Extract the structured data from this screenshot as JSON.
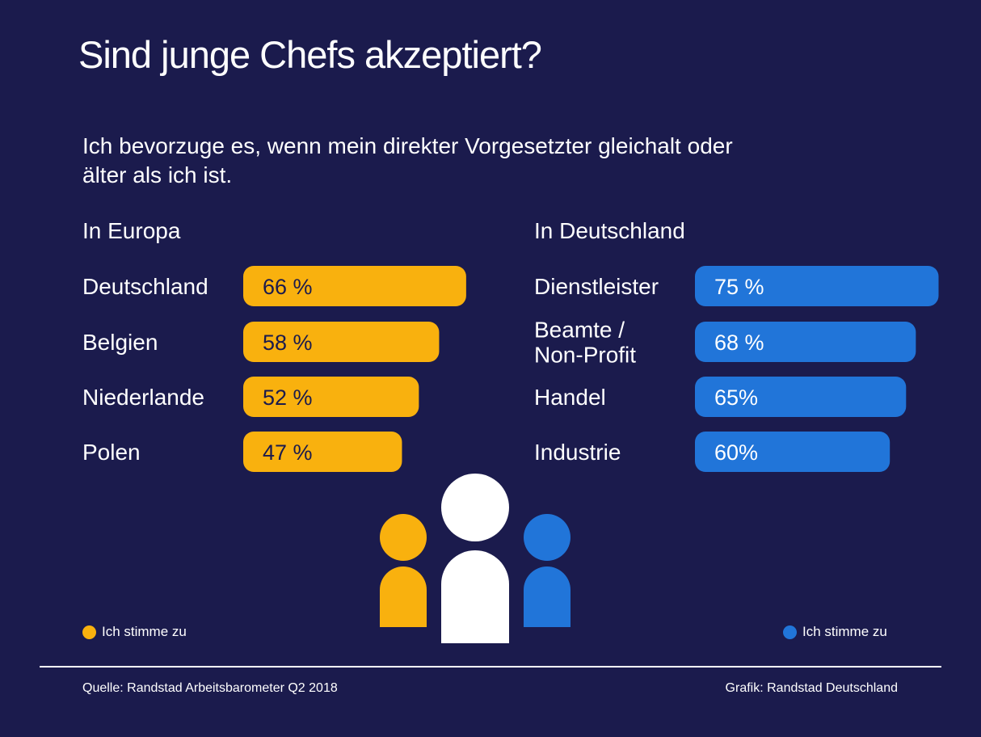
{
  "title": "Sind junge Chefs akzeptiert?",
  "subtitle": "Ich bevorzuge es, wenn mein direkter Vorgesetzter gleichalt oder älter als ich ist.",
  "colors": {
    "background": "#1b1b4d",
    "europe": "#f9b10e",
    "germany": "#2175d9",
    "text": "#ffffff"
  },
  "chart_data": [
    {
      "type": "bar",
      "orientation": "horizontal",
      "title": "In Europa",
      "categories": [
        "Deutschland",
        "Belgien",
        "Niederlande",
        "Polen"
      ],
      "values": [
        66,
        58,
        52,
        47
      ],
      "value_labels": [
        "66 %",
        "58 %",
        "52 %",
        "47 %"
      ],
      "unit": "%",
      "legend": "Ich stimme zu",
      "color": "#f9b10e"
    },
    {
      "type": "bar",
      "orientation": "horizontal",
      "title": "In Deutschland",
      "categories": [
        "Dienstleister",
        "Beamte /\nNon-Profit",
        "Handel",
        "Industrie"
      ],
      "values": [
        75,
        68,
        65,
        60
      ],
      "value_labels": [
        "75 %",
        "68 %",
        "65%",
        "60%"
      ],
      "unit": "%",
      "legend": "Ich stimme zu",
      "color": "#2175d9"
    }
  ],
  "legend": {
    "left": "Ich stimme zu",
    "right": "Ich stimme zu"
  },
  "footer": {
    "source": "Quelle: Randstad Arbeitsbarometer Q2 2018",
    "credit": "Grafik: Randstad Deutschland"
  },
  "illustration": {
    "icon": "people-group-icon",
    "colors": [
      "#f9b10e",
      "#ffffff",
      "#2175d9"
    ]
  }
}
